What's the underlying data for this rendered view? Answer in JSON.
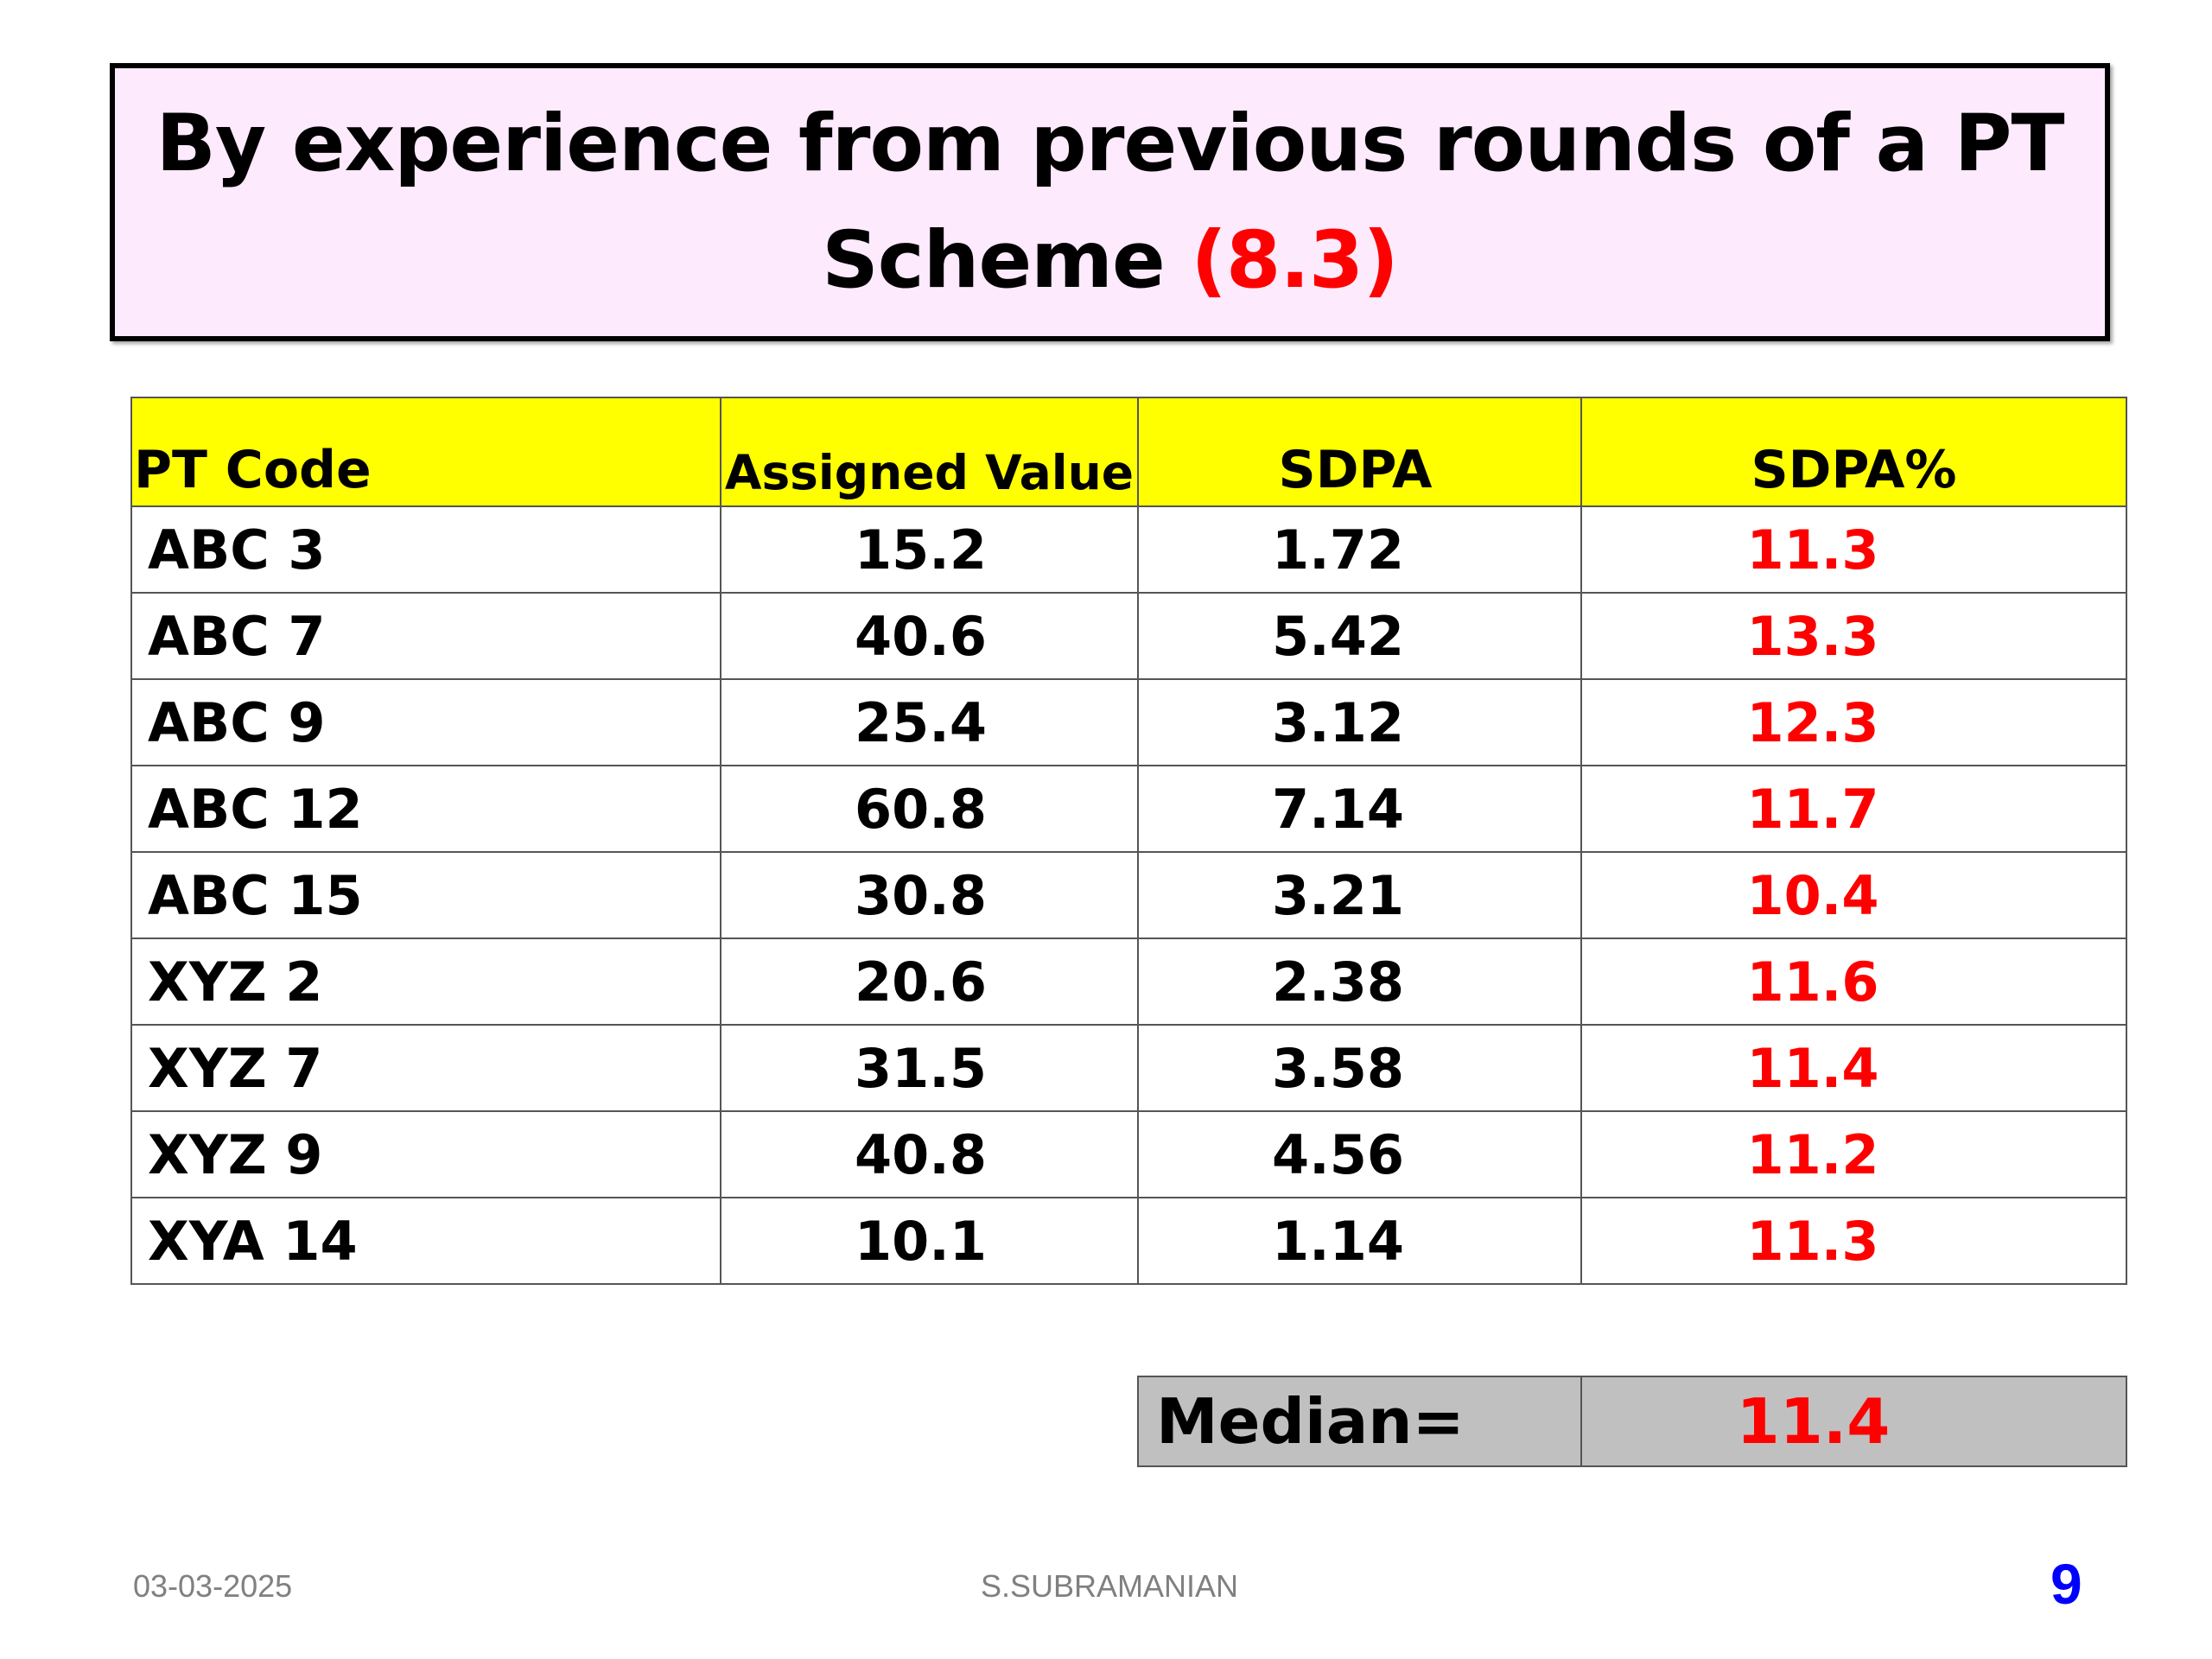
{
  "title": {
    "line1": "By experience from previous rounds of a PT",
    "line2": "Scheme ",
    "accent": "(8.3)"
  },
  "table": {
    "headers": [
      "PT Code",
      "Assigned Value",
      "SDPA",
      "SDPA%"
    ],
    "rows": [
      [
        "ABC 3",
        "15.2",
        "1.72",
        "11.3"
      ],
      [
        "ABC 7",
        "40.6",
        "5.42",
        "13.3"
      ],
      [
        "ABC 9",
        "25.4",
        "3.12",
        "12.3"
      ],
      [
        "ABC 12",
        "60.8",
        "7.14",
        "11.7"
      ],
      [
        "ABC 15",
        "30.8",
        "3.21",
        "10.4"
      ],
      [
        "XYZ 2",
        "20.6",
        "2.38",
        "11.6"
      ],
      [
        "XYZ 7",
        "31.5",
        "3.58",
        "11.4"
      ],
      [
        "XYZ 9",
        "40.8",
        "4.56",
        "11.2"
      ],
      [
        "XYA 14",
        "10.1",
        "1.14",
        "11.3"
      ]
    ]
  },
  "median": {
    "label": "Median=",
    "value": "11.4"
  },
  "footer": {
    "date": "03-03-2025",
    "author": "S.SUBRAMANIAN",
    "page": "9"
  },
  "colors": {
    "title_bg": "#fdeafd",
    "header_bg": "#ffff00",
    "accent": "#ff0000",
    "median_bg": "#c0c0c0",
    "page_number": "#0000ff"
  }
}
